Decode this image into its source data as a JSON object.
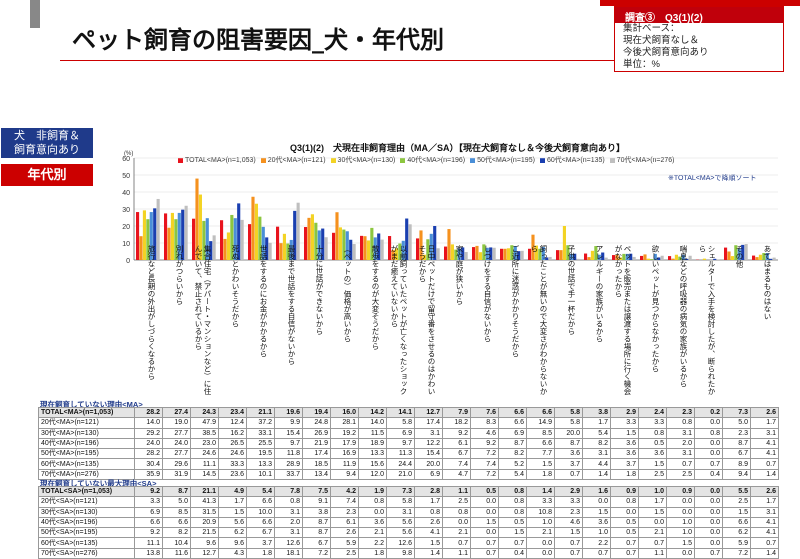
{
  "page_title": "ペット飼育の阻害要因_犬・年代別",
  "info": {
    "header": "調査③　Q3(1)(2)",
    "lines": [
      "集計ベース：",
      "現在犬飼育なし＆",
      "今後犬飼育意向あり",
      "単位：%"
    ]
  },
  "tag_segment": "犬　非飼育＆\n飼育意向あり",
  "tag_age": "年代別",
  "sort_note": "※TOTAL<MA>で降順ソート",
  "colors": [
    "#e8131d",
    "#f5911e",
    "#f3d324",
    "#8cc63f",
    "#4a8fd8",
    "#1a3fb0",
    "#bfbfbf"
  ],
  "chart_data": {
    "type": "bar",
    "title": "Q3(1)(2)　犬現在非飼育理由（MA／SA）【現在犬飼育なし＆今後犬飼育意向あり】",
    "unit_label": "(%)",
    "ylim": [
      0,
      60
    ],
    "yticks": [
      "0",
      "10",
      "20",
      "30",
      "40",
      "50",
      "60"
    ],
    "categories": [
      "旅行など長期の外出がしづらくなるから",
      "別れがつらいから",
      "集合住宅（アパート・マンションなど）に住んでいて、禁止されているから",
      "死ぬとかわいそうだから",
      "世話をするのにお金がかかるから",
      "最後まで世話をする自信がないから",
      "十分に世話ができないから",
      "（ペットの）価格が高いから",
      "散歩をするのが大変そうだから",
      "以前飼っていたペットが亡くなったショックがまだ癒えていないから",
      "日中ペットだけで留守番をさせるのはかわいそうだから",
      "家や庭が狭いから",
      "しつけをする自信がないから",
      "ご近所に迷惑がかかりそうだから",
      "飼ったことが無いので大変さがわからないから",
      "子供の世話で手一杯だから",
      "アレルギーの家族がいるから",
      "ペットを販売または譲渡する場所に行く機会がなかったから",
      "欲しいペットが見つからなかったから",
      "喘息などの呼吸器の病気の家族がいるから",
      "シェルターで入手を検討したが、断られたから",
      "その他",
      "あてはまるものはない"
    ],
    "series": [
      {
        "name": "TOTAL<MA>(n=1,053)",
        "values": [
          28.2,
          27.4,
          24.3,
          23.4,
          21.1,
          19.6,
          19.4,
          16.0,
          14.2,
          14.1,
          12.7,
          7.9,
          7.6,
          6.6,
          6.6,
          5.8,
          3.8,
          2.9,
          2.4,
          2.3,
          0.2,
          7.3,
          2.6
        ]
      },
      {
        "name": "20代<MA>(n=121)",
        "values": [
          14.0,
          19.0,
          47.9,
          12.4,
          37.2,
          9.9,
          24.8,
          28.1,
          14.0,
          5.8,
          17.4,
          18.2,
          8.3,
          6.6,
          14.9,
          5.8,
          1.7,
          3.3,
          3.3,
          0.8,
          0.0,
          5.0,
          1.7
        ]
      },
      {
        "name": "30代<MA>(n=130)",
        "values": [
          29.2,
          27.7,
          38.5,
          16.2,
          33.1,
          15.4,
          26.9,
          19.2,
          11.5,
          6.9,
          3.1,
          9.2,
          4.6,
          6.9,
          8.5,
          20.0,
          5.4,
          1.5,
          0.8,
          3.1,
          0.8,
          2.3,
          3.1
        ]
      },
      {
        "name": "40代<MA>(n=196)",
        "values": [
          24.0,
          24.0,
          23.0,
          26.5,
          25.5,
          9.7,
          21.9,
          17.9,
          18.9,
          9.7,
          12.2,
          6.1,
          9.2,
          8.7,
          6.6,
          8.7,
          8.2,
          3.6,
          0.5,
          2.0,
          0.0,
          8.7,
          4.1
        ]
      },
      {
        "name": "50代<MA>(n=195)",
        "values": [
          28.2,
          27.7,
          24.6,
          24.6,
          19.5,
          11.8,
          17.4,
          16.9,
          13.3,
          11.3,
          15.4,
          6.7,
          7.2,
          8.2,
          7.7,
          3.6,
          3.1,
          3.6,
          3.6,
          3.1,
          0.0,
          6.7,
          4.1
        ]
      },
      {
        "name": "60代<MA>(n=135)",
        "values": [
          30.4,
          29.6,
          11.1,
          33.3,
          13.3,
          28.9,
          18.5,
          11.9,
          15.6,
          24.4,
          20.0,
          7.4,
          7.4,
          5.2,
          1.5,
          3.7,
          4.4,
          3.7,
          1.5,
          0.7,
          0.7,
          8.9,
          0.7
        ]
      },
      {
        "name": "70代<MA>(n=276)",
        "values": [
          35.9,
          31.9,
          14.5,
          23.6,
          10.1,
          33.7,
          13.4,
          9.4,
          12.0,
          21.0,
          6.9,
          4.7,
          7.2,
          5.4,
          1.8,
          0.7,
          1.4,
          1.8,
          2.5,
          2.5,
          0.4,
          9.4,
          1.4
        ]
      }
    ]
  },
  "table_ma": {
    "label": "現在飼育していない理由<MA>",
    "rows": [
      {
        "label": "TOTAL<MA>(n=1,053)",
        "values": [
          "28.2",
          "27.4",
          "24.3",
          "23.4",
          "21.1",
          "19.6",
          "19.4",
          "16.0",
          "14.2",
          "14.1",
          "12.7",
          "7.9",
          "7.6",
          "6.6",
          "6.6",
          "5.8",
          "3.8",
          "2.9",
          "2.4",
          "2.3",
          "0.2",
          "7.3",
          "2.6"
        ]
      },
      {
        "label": "20代<MA>(n=121)",
        "values": [
          "14.0",
          "19.0",
          "47.9",
          "12.4",
          "37.2",
          "9.9",
          "24.8",
          "28.1",
          "14.0",
          "5.8",
          "17.4",
          "18.2",
          "8.3",
          "6.6",
          "14.9",
          "5.8",
          "1.7",
          "3.3",
          "3.3",
          "0.8",
          "0.0",
          "5.0",
          "1.7"
        ]
      },
      {
        "label": "30代<MA>(n=130)",
        "values": [
          "29.2",
          "27.7",
          "38.5",
          "16.2",
          "33.1",
          "15.4",
          "26.9",
          "19.2",
          "11.5",
          "6.9",
          "3.1",
          "9.2",
          "4.6",
          "6.9",
          "8.5",
          "20.0",
          "5.4",
          "1.5",
          "0.8",
          "3.1",
          "0.8",
          "2.3",
          "3.1"
        ]
      },
      {
        "label": "40代<MA>(n=196)",
        "values": [
          "24.0",
          "24.0",
          "23.0",
          "26.5",
          "25.5",
          "9.7",
          "21.9",
          "17.9",
          "18.9",
          "9.7",
          "12.2",
          "6.1",
          "9.2",
          "8.7",
          "6.6",
          "8.7",
          "8.2",
          "3.6",
          "0.5",
          "2.0",
          "0.0",
          "8.7",
          "4.1"
        ]
      },
      {
        "label": "50代<MA>(n=195)",
        "values": [
          "28.2",
          "27.7",
          "24.6",
          "24.6",
          "19.5",
          "11.8",
          "17.4",
          "16.9",
          "13.3",
          "11.3",
          "15.4",
          "6.7",
          "7.2",
          "8.2",
          "7.7",
          "3.6",
          "3.1",
          "3.6",
          "3.6",
          "3.1",
          "0.0",
          "6.7",
          "4.1"
        ]
      },
      {
        "label": "60代<MA>(n=135)",
        "values": [
          "30.4",
          "29.6",
          "11.1",
          "33.3",
          "13.3",
          "28.9",
          "18.5",
          "11.9",
          "15.6",
          "24.4",
          "20.0",
          "7.4",
          "7.4",
          "5.2",
          "1.5",
          "3.7",
          "4.4",
          "3.7",
          "1.5",
          "0.7",
          "0.7",
          "8.9",
          "0.7"
        ]
      },
      {
        "label": "70代<MA>(n=276)",
        "values": [
          "35.9",
          "31.9",
          "14.5",
          "23.6",
          "10.1",
          "33.7",
          "13.4",
          "9.4",
          "12.0",
          "21.0",
          "6.9",
          "4.7",
          "7.2",
          "5.4",
          "1.8",
          "0.7",
          "1.4",
          "1.8",
          "2.5",
          "2.5",
          "0.4",
          "9.4",
          "1.4"
        ]
      }
    ]
  },
  "table_sa": {
    "label": "現在飼育していない最大理由<SA>",
    "rows": [
      {
        "label": "TOTAL<SA>(n=1,053)",
        "values": [
          "9.2",
          "8.7",
          "21.1",
          "4.9",
          "5.4",
          "7.8",
          "7.5",
          "4.2",
          "1.9",
          "7.3",
          "2.8",
          "1.1",
          "0.5",
          "0.8",
          "1.4",
          "2.9",
          "1.6",
          "0.9",
          "1.0",
          "0.9",
          "0.0",
          "5.5",
          "2.6"
        ]
      },
      {
        "label": "20代<SA>(n=121)",
        "values": [
          "3.3",
          "5.0",
          "41.3",
          "1.7",
          "6.6",
          "0.8",
          "9.1",
          "7.4",
          "0.8",
          "5.8",
          "1.7",
          "2.5",
          "0.0",
          "0.8",
          "3.3",
          "3.3",
          "0.0",
          "0.8",
          "1.7",
          "0.0",
          "0.0",
          "2.5",
          "1.7"
        ]
      },
      {
        "label": "30代<SA>(n=130)",
        "values": [
          "6.9",
          "8.5",
          "31.5",
          "1.5",
          "10.0",
          "3.1",
          "3.8",
          "2.3",
          "0.0",
          "3.1",
          "0.8",
          "0.8",
          "0.0",
          "0.8",
          "10.8",
          "2.3",
          "1.5",
          "0.0",
          "1.5",
          "0.0",
          "0.0",
          "1.5",
          "3.1"
        ]
      },
      {
        "label": "40代<SA>(n=196)",
        "values": [
          "6.6",
          "6.6",
          "20.9",
          "5.6",
          "6.6",
          "2.0",
          "8.7",
          "6.1",
          "3.6",
          "5.6",
          "2.6",
          "0.0",
          "1.5",
          "0.5",
          "1.0",
          "4.6",
          "3.6",
          "0.5",
          "0.0",
          "1.0",
          "0.0",
          "6.6",
          "4.1"
        ]
      },
      {
        "label": "50代<SA>(n=195)",
        "values": [
          "9.2",
          "8.2",
          "21.5",
          "6.2",
          "6.7",
          "3.1",
          "8.7",
          "2.6",
          "2.1",
          "5.6",
          "4.1",
          "2.1",
          "0.0",
          "1.5",
          "2.1",
          "1.5",
          "1.0",
          "0.5",
          "2.1",
          "1.0",
          "0.0",
          "6.2",
          "4.1"
        ]
      },
      {
        "label": "60代<SA>(n=135)",
        "values": [
          "11.1",
          "10.4",
          "9.6",
          "9.6",
          "3.7",
          "12.6",
          "6.7",
          "5.9",
          "2.2",
          "12.6",
          "1.5",
          "0.7",
          "0.7",
          "0.7",
          "0.0",
          "0.7",
          "2.2",
          "0.7",
          "0.7",
          "1.5",
          "0.0",
          "5.9",
          "0.7"
        ]
      },
      {
        "label": "70代<SA>(n=276)",
        "values": [
          "13.8",
          "11.6",
          "12.7",
          "4.3",
          "1.8",
          "18.1",
          "7.2",
          "2.5",
          "1.8",
          "9.8",
          "1.4",
          "1.1",
          "0.7",
          "0.4",
          "0.0",
          "0.7",
          "0.7",
          "0.7",
          "1.1",
          "0.0",
          "0.7",
          "7.2",
          "1.4"
        ]
      }
    ]
  }
}
